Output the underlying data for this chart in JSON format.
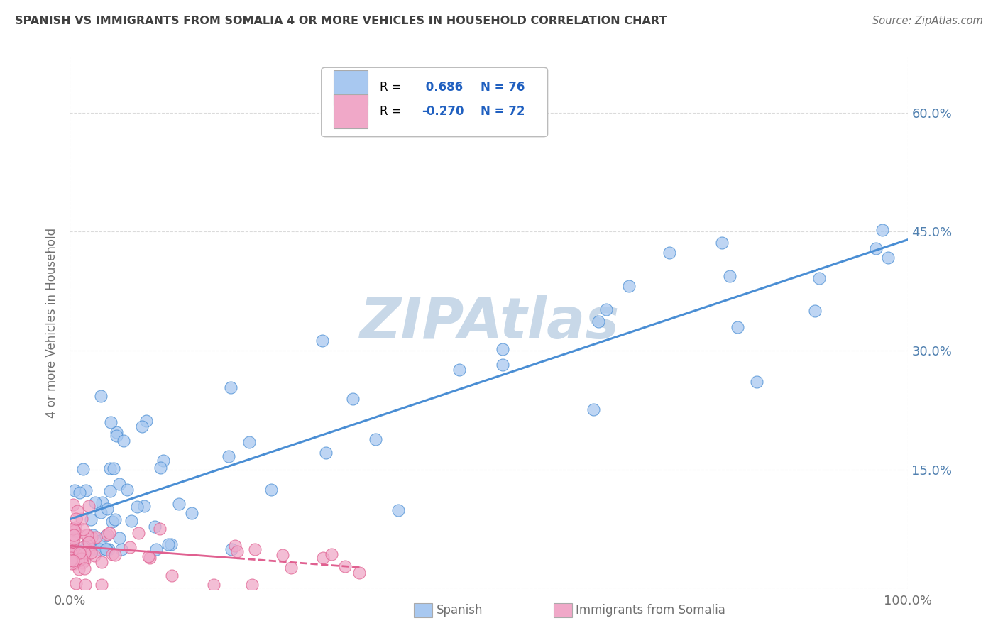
{
  "title": "SPANISH VS IMMIGRANTS FROM SOMALIA 4 OR MORE VEHICLES IN HOUSEHOLD CORRELATION CHART",
  "source": "Source: ZipAtlas.com",
  "ylabel": "4 or more Vehicles in Household",
  "xlabel_spanish": "Spanish",
  "xlabel_somalia": "Immigrants from Somalia",
  "xmin": 0.0,
  "xmax": 100.0,
  "ymin": 0.0,
  "ymax": 67.0,
  "ytick_vals": [
    0,
    15,
    30,
    45,
    60
  ],
  "ytick_labels_right": [
    "",
    "15.0%",
    "30.0%",
    "45.0%",
    "60.0%"
  ],
  "r_spanish": 0.686,
  "n_spanish": 76,
  "r_somalia": -0.27,
  "n_somalia": 72,
  "color_spanish": "#a8c8f0",
  "color_somalia": "#f0a8c8",
  "color_line_spanish": "#4a8ed4",
  "color_line_somalia": "#e06090",
  "watermark": "ZIPAtlas",
  "watermark_color": "#c8d8e8",
  "background_color": "#ffffff",
  "grid_color": "#cccccc",
  "title_color": "#404040",
  "label_color": "#707070",
  "axis_label_color": "#5080b0",
  "legend_val_color": "#2060c0",
  "seed": 42
}
